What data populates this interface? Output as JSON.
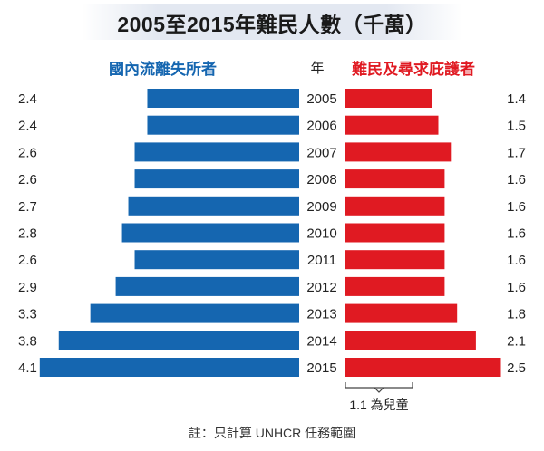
{
  "title": "2005至2015年難民人數（千萬）",
  "legend": {
    "left": "國內流離失所者",
    "middle": "年",
    "right": "難民及尋求庇護者"
  },
  "annotation": "1.1 為兒童",
  "footnote": "註：只計算 UNHCR 任務範圍",
  "colors": {
    "left": "#1566b0",
    "right": "#e01a22"
  },
  "chart_data": {
    "type": "bar",
    "categories": [
      "2005",
      "2006",
      "2007",
      "2008",
      "2009",
      "2010",
      "2011",
      "2012",
      "2013",
      "2014",
      "2015"
    ],
    "series": [
      {
        "name": "國內流離失所者",
        "values": [
          2.4,
          2.4,
          2.6,
          2.6,
          2.7,
          2.8,
          2.6,
          2.9,
          3.3,
          3.8,
          4.1
        ]
      },
      {
        "name": "難民及尋求庇護者",
        "values": [
          1.4,
          1.5,
          1.7,
          1.6,
          1.6,
          1.6,
          1.6,
          1.6,
          1.8,
          2.1,
          2.5
        ]
      }
    ],
    "orientation": "horizontal-butterfly",
    "grid": false
  }
}
